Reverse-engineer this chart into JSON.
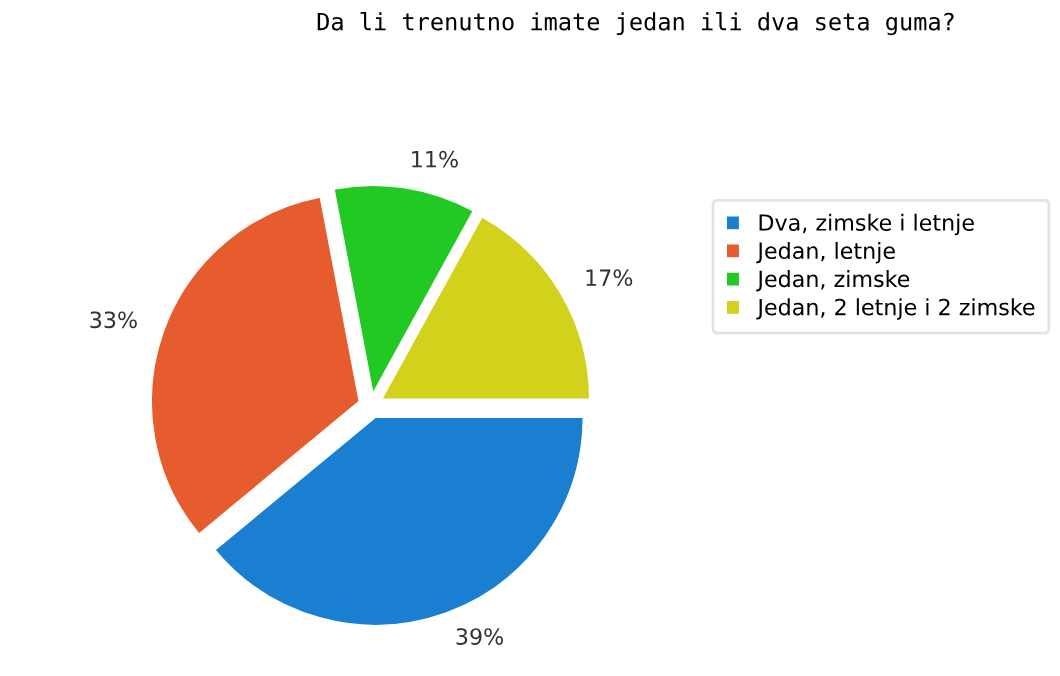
{
  "chart_data": {
    "type": "pie",
    "title": "Da li trenutno imate jedan ili dva seta guma?",
    "categories": [
      "Dva, zimske i letnje",
      "Jedan, letnje",
      "Jedan, zimske",
      "Jedan, 2 letnje i 2 zimske"
    ],
    "values": [
      39,
      33,
      11,
      17
    ],
    "value_labels": [
      "39%",
      "33%",
      "11%",
      "17%"
    ],
    "colors": [
      "#1a7fd0",
      "#e65c2e",
      "#22c922",
      "#d2d21c"
    ],
    "legend": "top right"
  }
}
